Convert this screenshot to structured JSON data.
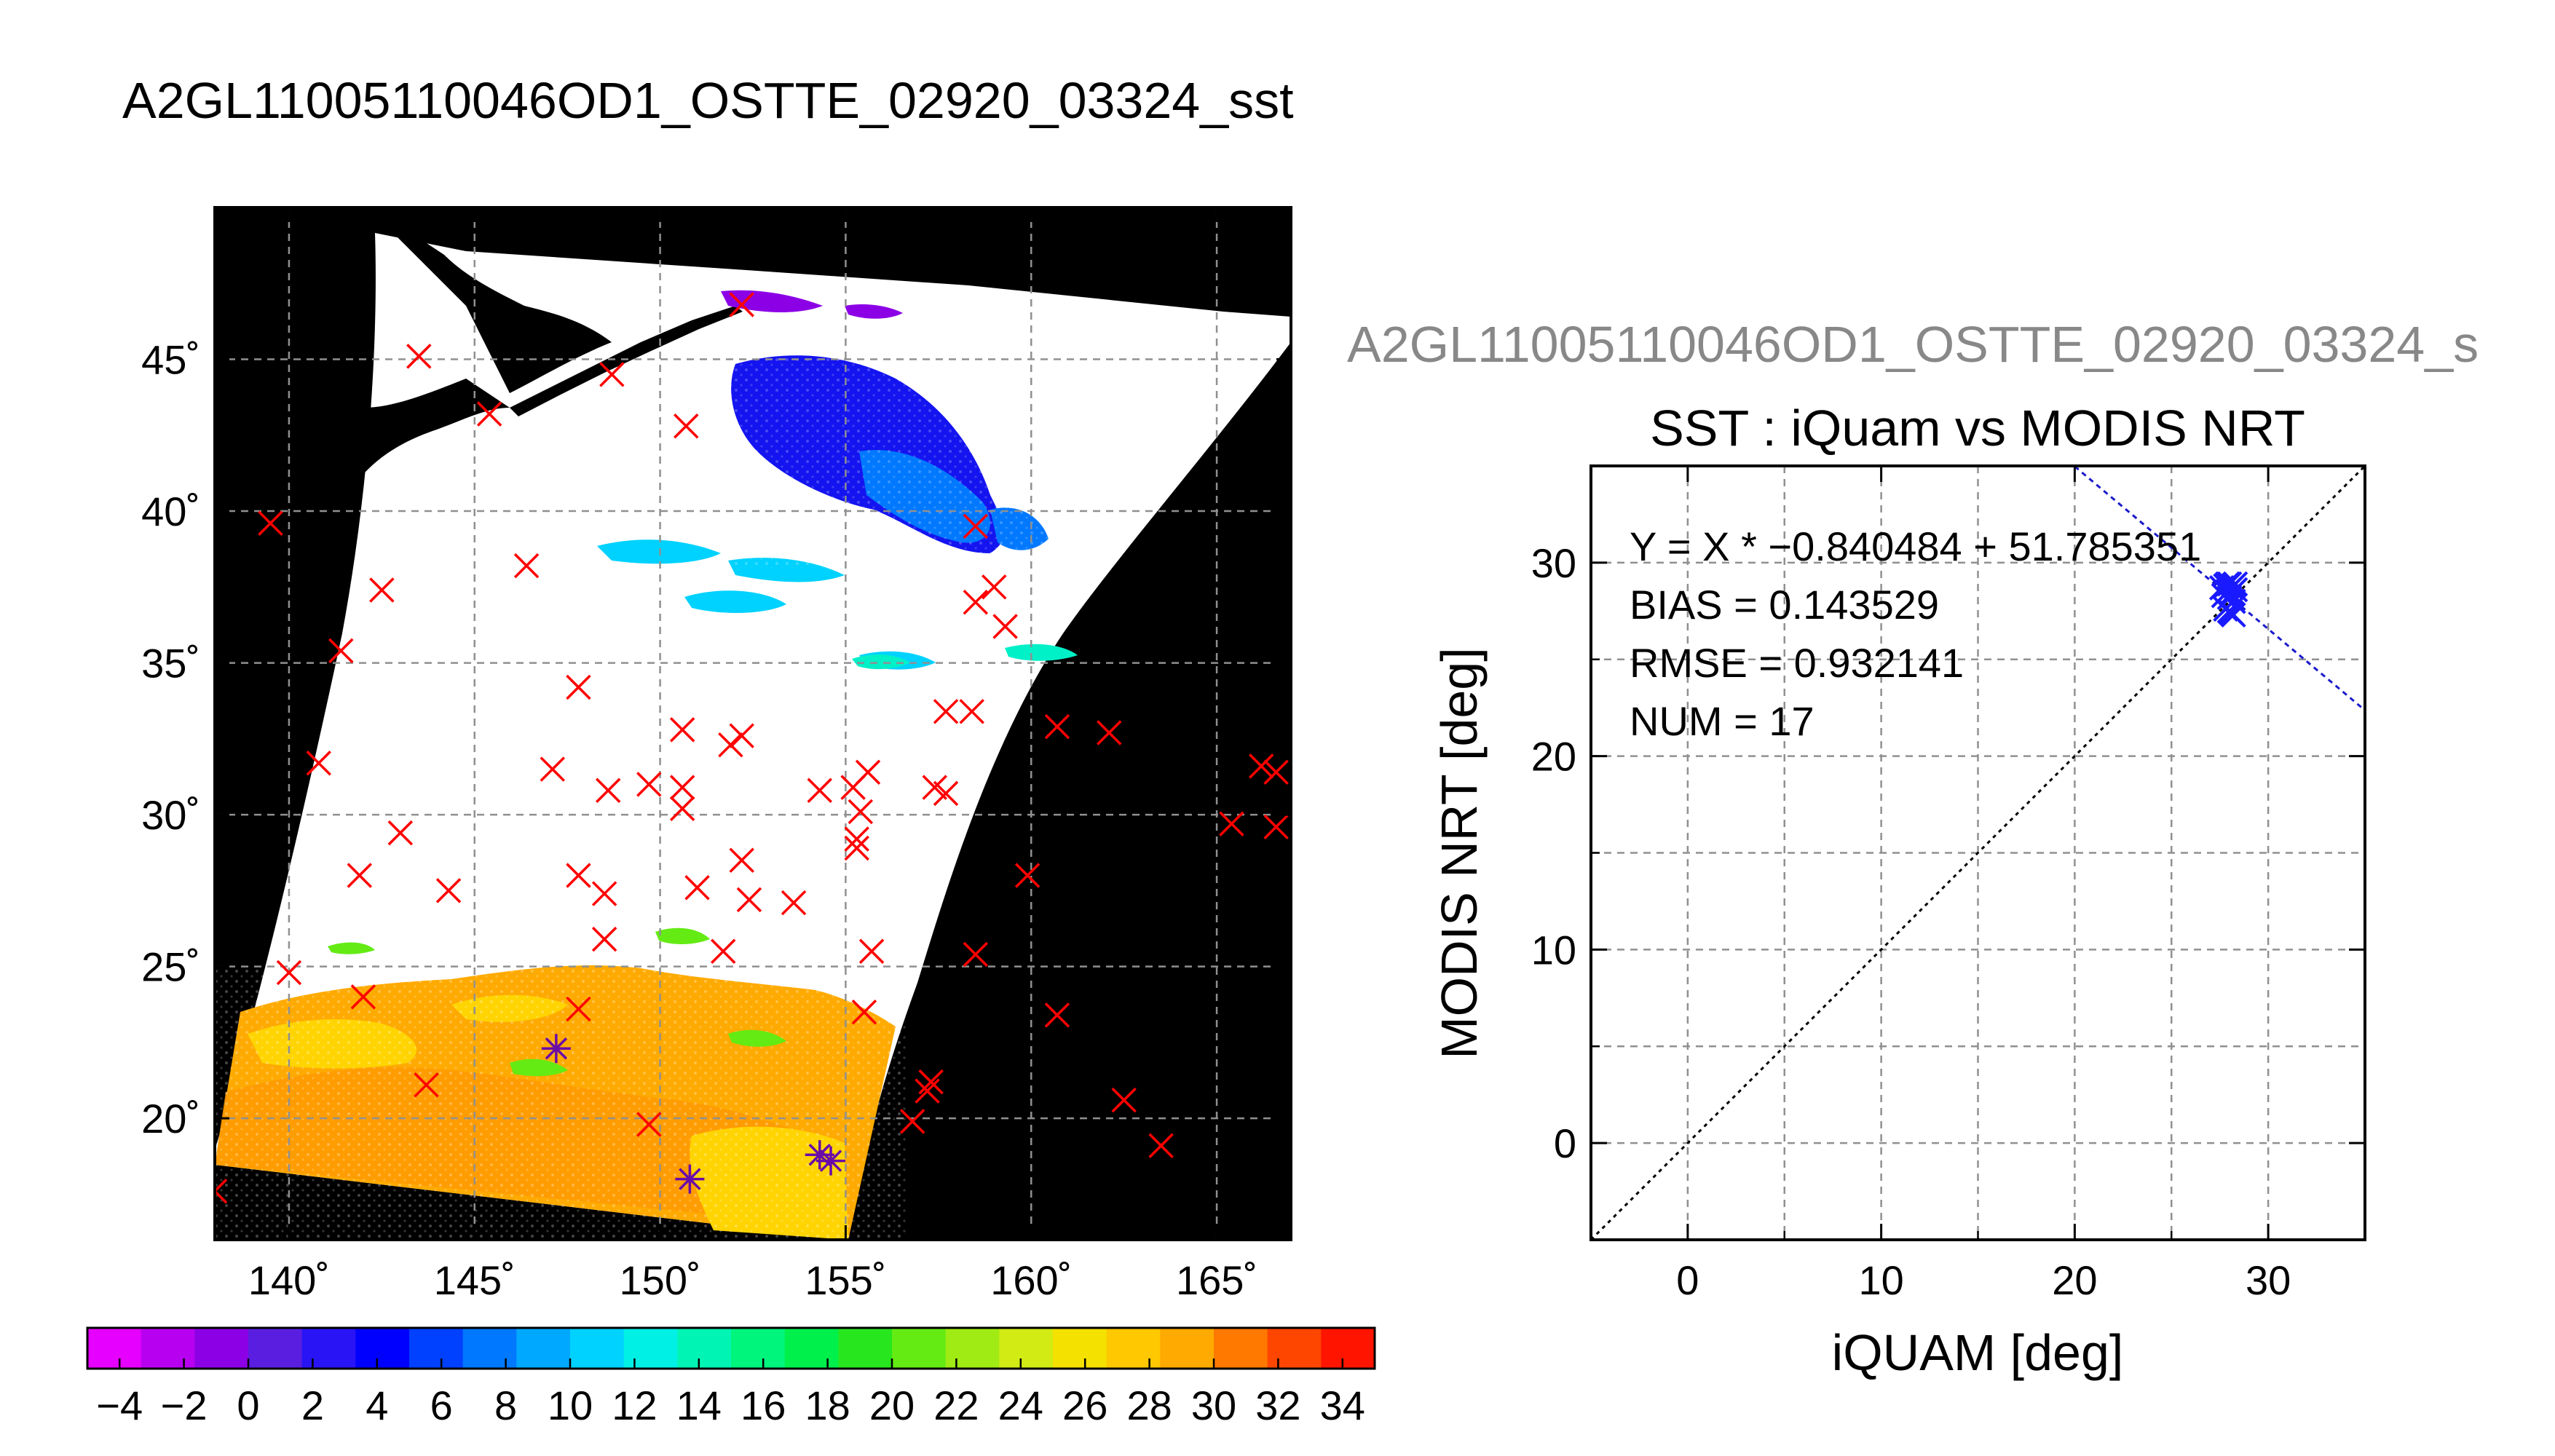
{
  "main_title": "A2GL11005110046OD1_OSTTE_02920_03324_sst",
  "map": {
    "lon_range": [
      138,
      167
    ],
    "lat_range": [
      16,
      50
    ],
    "lon_ticks": [
      {
        "v": 140,
        "label": "140˚"
      },
      {
        "v": 145,
        "label": "145˚"
      },
      {
        "v": 150,
        "label": "150˚"
      },
      {
        "v": 155,
        "label": "155˚"
      },
      {
        "v": 160,
        "label": "160˚"
      },
      {
        "v": 165,
        "label": "165˚"
      }
    ],
    "lat_ticks": [
      {
        "v": 20,
        "label": "20˚"
      },
      {
        "v": 25,
        "label": "25˚"
      },
      {
        "v": 30,
        "label": "30˚"
      },
      {
        "v": 35,
        "label": "35˚"
      },
      {
        "v": 40,
        "label": "40˚"
      },
      {
        "v": 45,
        "label": "45˚"
      }
    ],
    "colors": {
      "land": "#000000",
      "cloud": "#ffffff",
      "grid": "#909090",
      "match_marker": "#ff0000",
      "collocated_marker": "#6a0ca8"
    },
    "red_x_markers": [
      [
        143.5,
        45.1
      ],
      [
        145.4,
        43.2
      ],
      [
        148.7,
        44.5
      ],
      [
        150.7,
        42.8
      ],
      [
        152.2,
        46.8
      ],
      [
        139.5,
        39.6
      ],
      [
        142.5,
        37.4
      ],
      [
        141.4,
        35.4
      ],
      [
        146.4,
        38.2
      ],
      [
        147.8,
        34.2
      ],
      [
        140.8,
        31.7
      ],
      [
        143.0,
        29.4
      ],
      [
        141.9,
        28.0
      ],
      [
        144.3,
        27.5
      ],
      [
        147.1,
        31.5
      ],
      [
        148.6,
        30.8
      ],
      [
        147.8,
        28.0
      ],
      [
        148.5,
        27.4
      ],
      [
        148.5,
        25.9
      ],
      [
        149.7,
        31.0
      ],
      [
        150.6,
        30.9
      ],
      [
        150.6,
        30.2
      ],
      [
        150.6,
        32.8
      ],
      [
        151.9,
        32.3
      ],
      [
        152.2,
        32.6
      ],
      [
        151.0,
        27.6
      ],
      [
        152.2,
        28.5
      ],
      [
        152.4,
        27.2
      ],
      [
        153.6,
        27.1
      ],
      [
        151.7,
        25.5
      ],
      [
        154.3,
        30.8
      ],
      [
        155.2,
        30.9
      ],
      [
        155.4,
        30.1
      ],
      [
        155.6,
        31.4
      ],
      [
        155.3,
        29.2
      ],
      [
        155.3,
        28.9
      ],
      [
        155.7,
        25.5
      ],
      [
        155.5,
        23.5
      ],
      [
        157.4,
        30.9
      ],
      [
        157.7,
        30.7
      ],
      [
        157.7,
        33.4
      ],
      [
        158.4,
        33.4
      ],
      [
        158.5,
        39.5
      ],
      [
        158.5,
        37.0
      ],
      [
        159.0,
        37.5
      ],
      [
        159.3,
        36.2
      ],
      [
        160.7,
        32.9
      ],
      [
        162.1,
        32.7
      ],
      [
        159.9,
        28.0
      ],
      [
        158.5,
        25.4
      ],
      [
        160.7,
        23.4
      ],
      [
        156.8,
        19.9
      ],
      [
        157.3,
        21.2
      ],
      [
        157.2,
        20.9
      ],
      [
        162.5,
        20.6
      ],
      [
        163.5,
        19.1
      ],
      [
        165.4,
        29.7
      ],
      [
        166.2,
        31.6
      ],
      [
        166.6,
        31.4
      ],
      [
        166.6,
        29.6
      ],
      [
        140.0,
        24.8
      ],
      [
        142.0,
        24.0
      ],
      [
        143.7,
        21.1
      ],
      [
        147.8,
        23.6
      ],
      [
        149.7,
        19.8
      ],
      [
        138.0,
        17.6
      ]
    ],
    "star_markers": [
      [
        147.2,
        22.3
      ],
      [
        150.8,
        18.0
      ],
      [
        154.3,
        18.8
      ],
      [
        154.6,
        18.6
      ]
    ]
  },
  "colorbar": {
    "range": [
      -5,
      35
    ],
    "tick_labels": [
      "−4",
      "−2",
      "0",
      "2",
      "4",
      "6",
      "8",
      "10",
      "12",
      "14",
      "16",
      "18",
      "20",
      "22",
      "24",
      "26",
      "28",
      "30",
      "32",
      "34"
    ],
    "tick_values": [
      -4,
      -2,
      0,
      2,
      4,
      6,
      8,
      10,
      12,
      14,
      16,
      18,
      20,
      22,
      24,
      26,
      28,
      30,
      32,
      34
    ],
    "colors": [
      "#e600ff",
      "#b800f0",
      "#8c00e6",
      "#5a1ee0",
      "#2814f5",
      "#0000ff",
      "#0040ff",
      "#0078ff",
      "#00a8ff",
      "#00d2ff",
      "#00f0e6",
      "#00f5b4",
      "#00f57d",
      "#00f04b",
      "#28e61e",
      "#64eb14",
      "#a0eb14",
      "#d2eb14",
      "#f5e100",
      "#ffc800",
      "#ffaa00",
      "#ff7800",
      "#ff4600",
      "#ff1400"
    ]
  },
  "scatter": {
    "file_label": "A2GL11005110046OD1_OSTTE_02920_03324_s",
    "title": "SST : iQuam vs MODIS NRT",
    "xlabel": "iQUAM [deg]",
    "ylabel": "MODIS NRT [deg]",
    "stats": [
      "Y = X * −0.840484 + 51.785351",
      "BIAS = 0.143529",
      "RMSE = 0.932141",
      "NUM = 17"
    ],
    "colors": {
      "points": "#1a1aff",
      "fit_line": "#1a1acc",
      "identity_line": "#000000",
      "grid": "#909090"
    }
  },
  "chart_data": [
    {
      "type": "scatter",
      "title": "A2GL11005110046OD1_OSTTE_02920_03324_sst",
      "xlabel": "",
      "ylabel": "",
      "xlim": [
        138,
        167
      ],
      "ylim": [
        16,
        50
      ],
      "grid": true,
      "series": [
        {
          "values": "map.red_x_markers"
        },
        {
          "values": "map.star_markers"
        }
      ],
      "colorbar": {
        "min": -5,
        "max": 35
      }
    },
    {
      "type": "scatter",
      "title": "SST : iQuam vs MODIS NRT",
      "xlabel": "iQUAM [deg]",
      "ylabel": "MODIS NRT [deg]",
      "xlim": [
        -5,
        35
      ],
      "ylim": [
        -5,
        35
      ],
      "x_ticks": [
        0,
        10,
        20,
        30
      ],
      "y_ticks": [
        0,
        10,
        20,
        30
      ],
      "grid": true,
      "points": [
        [
          27.6,
          28.7
        ],
        [
          27.8,
          28.8
        ],
        [
          28.0,
          28.9
        ],
        [
          28.2,
          28.8
        ],
        [
          28.3,
          28.6
        ],
        [
          27.9,
          28.5
        ],
        [
          28.1,
          28.4
        ],
        [
          27.7,
          28.3
        ],
        [
          28.0,
          27.5
        ],
        [
          28.2,
          27.3
        ],
        [
          27.9,
          28.9
        ],
        [
          28.3,
          28.9
        ],
        [
          28.1,
          28.7
        ],
        [
          27.8,
          27.6
        ],
        [
          28.0,
          28.2
        ],
        [
          28.2,
          28.0
        ],
        [
          28.1,
          27.4
        ]
      ],
      "fit": {
        "slope": -0.840484,
        "intercept": 51.785351
      },
      "identity_line": true,
      "stats": {
        "bias": 0.143529,
        "rmse": 0.932141,
        "num": 17
      }
    }
  ]
}
